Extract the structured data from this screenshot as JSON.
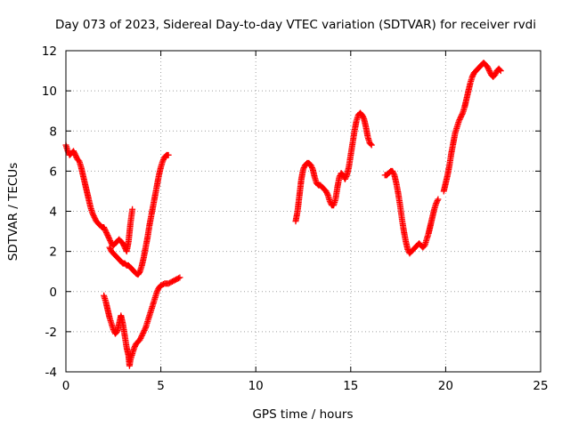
{
  "chart_data": {
    "type": "scatter",
    "title": "Day 073 of 2023, Sidereal Day-to-day VTEC variation (SDTVAR) for receiver rvdi",
    "xlabel": "GPS time / hours",
    "ylabel": "SDTVAR / TECUs",
    "xlim": [
      0,
      25
    ],
    "ylim": [
      -4,
      12
    ],
    "x_ticks": [
      0,
      5,
      10,
      15,
      20,
      25
    ],
    "y_ticks": [
      -4,
      -2,
      0,
      2,
      4,
      6,
      8,
      10,
      12
    ],
    "x_tick_labels": [
      "0",
      "5",
      "10",
      "15",
      "20",
      "25"
    ],
    "y_tick_labels": [
      "-4",
      "-2",
      "0",
      "2",
      "4",
      "6",
      "8",
      "10",
      "12"
    ],
    "grid": true,
    "legend": "none",
    "marker": "plus",
    "color": "#ff0000",
    "series": [
      {
        "points": [
          [
            0.0,
            7.3
          ],
          [
            0.1,
            7.0
          ],
          [
            0.2,
            6.8
          ],
          [
            0.3,
            6.9
          ],
          [
            0.4,
            7.0
          ],
          [
            0.5,
            6.8
          ],
          [
            0.6,
            6.6
          ],
          [
            0.7,
            6.5
          ],
          [
            0.8,
            6.2
          ],
          [
            0.9,
            5.8
          ],
          [
            1.0,
            5.4
          ],
          [
            1.1,
            5.0
          ],
          [
            1.2,
            4.6
          ],
          [
            1.3,
            4.2
          ],
          [
            1.4,
            3.9
          ],
          [
            1.5,
            3.7
          ],
          [
            1.6,
            3.5
          ],
          [
            1.7,
            3.4
          ],
          [
            1.8,
            3.3
          ],
          [
            1.9,
            3.2
          ],
          [
            2.0,
            3.2
          ],
          [
            2.1,
            3.0
          ],
          [
            2.2,
            2.8
          ],
          [
            2.3,
            2.6
          ],
          [
            2.4,
            2.4
          ],
          [
            2.5,
            2.3
          ],
          [
            2.6,
            2.4
          ],
          [
            2.7,
            2.5
          ],
          [
            2.8,
            2.6
          ],
          [
            2.9,
            2.5
          ],
          [
            3.0,
            2.4
          ],
          [
            3.1,
            2.2
          ],
          [
            3.2,
            2.0
          ],
          [
            3.3,
            2.5
          ],
          [
            3.4,
            3.4
          ],
          [
            3.5,
            4.1
          ]
        ]
      },
      {
        "points": [
          [
            2.3,
            2.2
          ],
          [
            2.4,
            2.0
          ],
          [
            2.5,
            1.9
          ],
          [
            2.6,
            1.8
          ],
          [
            2.7,
            1.7
          ],
          [
            2.8,
            1.6
          ],
          [
            2.9,
            1.5
          ],
          [
            3.0,
            1.4
          ],
          [
            3.1,
            1.4
          ],
          [
            3.2,
            1.3
          ],
          [
            3.3,
            1.3
          ],
          [
            3.4,
            1.2
          ],
          [
            3.5,
            1.1
          ],
          [
            3.6,
            1.0
          ],
          [
            3.7,
            0.9
          ],
          [
            3.8,
            0.85
          ],
          [
            3.9,
            1.0
          ],
          [
            4.0,
            1.3
          ],
          [
            4.1,
            1.7
          ],
          [
            4.2,
            2.2
          ],
          [
            4.3,
            2.7
          ],
          [
            4.4,
            3.3
          ],
          [
            4.5,
            3.8
          ],
          [
            4.6,
            4.3
          ],
          [
            4.7,
            4.8
          ],
          [
            4.8,
            5.3
          ],
          [
            4.9,
            5.8
          ],
          [
            5.0,
            6.2
          ],
          [
            5.1,
            6.5
          ],
          [
            5.2,
            6.7
          ],
          [
            5.3,
            6.8
          ],
          [
            5.4,
            6.8
          ]
        ]
      },
      {
        "points": [
          [
            2.0,
            -0.2
          ],
          [
            2.1,
            -0.5
          ],
          [
            2.2,
            -0.9
          ],
          [
            2.3,
            -1.3
          ],
          [
            2.4,
            -1.6
          ],
          [
            2.5,
            -1.9
          ],
          [
            2.6,
            -2.1
          ],
          [
            2.7,
            -2.0
          ],
          [
            2.8,
            -1.6
          ],
          [
            2.9,
            -1.2
          ],
          [
            3.0,
            -1.6
          ],
          [
            3.1,
            -2.2
          ],
          [
            3.2,
            -2.8
          ],
          [
            3.3,
            -3.2
          ],
          [
            3.35,
            -3.7
          ],
          [
            3.4,
            -3.4
          ],
          [
            3.5,
            -3.1
          ],
          [
            3.6,
            -2.8
          ],
          [
            3.7,
            -2.6
          ],
          [
            3.8,
            -2.5
          ],
          [
            3.9,
            -2.4
          ],
          [
            4.0,
            -2.2
          ],
          [
            4.1,
            -2.0
          ],
          [
            4.2,
            -1.8
          ],
          [
            4.3,
            -1.5
          ],
          [
            4.4,
            -1.2
          ],
          [
            4.5,
            -0.9
          ],
          [
            4.6,
            -0.6
          ],
          [
            4.7,
            -0.3
          ],
          [
            4.8,
            0.0
          ],
          [
            4.9,
            0.2
          ],
          [
            5.0,
            0.3
          ],
          [
            5.2,
            0.4
          ],
          [
            5.4,
            0.4
          ],
          [
            5.6,
            0.5
          ],
          [
            5.8,
            0.6
          ],
          [
            6.0,
            0.7
          ]
        ]
      },
      {
        "points": [
          [
            12.1,
            3.5
          ],
          [
            12.2,
            4.0
          ],
          [
            12.3,
            4.8
          ],
          [
            12.4,
            5.6
          ],
          [
            12.5,
            6.1
          ],
          [
            12.6,
            6.3
          ],
          [
            12.7,
            6.4
          ],
          [
            12.8,
            6.4
          ],
          [
            12.9,
            6.3
          ],
          [
            13.0,
            6.1
          ],
          [
            13.1,
            5.7
          ],
          [
            13.2,
            5.4
          ],
          [
            13.3,
            5.3
          ],
          [
            13.4,
            5.3
          ],
          [
            13.5,
            5.2
          ],
          [
            13.6,
            5.1
          ],
          [
            13.7,
            5.0
          ],
          [
            13.8,
            4.8
          ],
          [
            13.9,
            4.5
          ],
          [
            14.0,
            4.3
          ],
          [
            14.1,
            4.3
          ],
          [
            14.2,
            4.6
          ],
          [
            14.3,
            5.2
          ],
          [
            14.4,
            5.7
          ],
          [
            14.5,
            5.9
          ],
          [
            14.6,
            5.8
          ],
          [
            14.7,
            5.6
          ],
          [
            14.8,
            5.8
          ],
          [
            14.9,
            6.2
          ],
          [
            15.0,
            6.8
          ],
          [
            15.1,
            7.4
          ],
          [
            15.2,
            8.0
          ],
          [
            15.3,
            8.5
          ],
          [
            15.4,
            8.8
          ],
          [
            15.5,
            8.9
          ],
          [
            15.6,
            8.8
          ],
          [
            15.7,
            8.6
          ],
          [
            15.8,
            8.2
          ],
          [
            15.9,
            7.7
          ],
          [
            16.0,
            7.4
          ],
          [
            16.1,
            7.3
          ]
        ]
      },
      {
        "points": [
          [
            16.8,
            5.8
          ],
          [
            16.9,
            5.8
          ],
          [
            17.0,
            5.9
          ],
          [
            17.1,
            6.0
          ],
          [
            17.2,
            6.0
          ],
          [
            17.3,
            5.8
          ],
          [
            17.4,
            5.4
          ],
          [
            17.5,
            4.9
          ],
          [
            17.6,
            4.3
          ],
          [
            17.7,
            3.6
          ],
          [
            17.8,
            3.0
          ],
          [
            17.9,
            2.5
          ],
          [
            18.0,
            2.1
          ],
          [
            18.1,
            1.9
          ],
          [
            18.2,
            2.0
          ],
          [
            18.3,
            2.1
          ],
          [
            18.4,
            2.2
          ],
          [
            18.5,
            2.3
          ],
          [
            18.6,
            2.4
          ],
          [
            18.7,
            2.3
          ],
          [
            18.8,
            2.2
          ],
          [
            18.9,
            2.3
          ],
          [
            19.0,
            2.6
          ],
          [
            19.1,
            2.9
          ],
          [
            19.2,
            3.3
          ],
          [
            19.3,
            3.7
          ],
          [
            19.4,
            4.1
          ],
          [
            19.5,
            4.4
          ],
          [
            19.6,
            4.6
          ]
        ]
      },
      {
        "points": [
          [
            19.9,
            5.0
          ],
          [
            20.0,
            5.4
          ],
          [
            20.1,
            5.8
          ],
          [
            20.2,
            6.3
          ],
          [
            20.3,
            6.9
          ],
          [
            20.4,
            7.4
          ],
          [
            20.5,
            7.9
          ],
          [
            20.6,
            8.2
          ],
          [
            20.7,
            8.5
          ],
          [
            20.8,
            8.7
          ],
          [
            20.9,
            8.9
          ],
          [
            21.0,
            9.2
          ],
          [
            21.1,
            9.6
          ],
          [
            21.2,
            10.0
          ],
          [
            21.3,
            10.4
          ],
          [
            21.4,
            10.7
          ],
          [
            21.5,
            10.9
          ],
          [
            21.6,
            11.0
          ],
          [
            21.7,
            11.1
          ],
          [
            21.8,
            11.2
          ],
          [
            21.9,
            11.3
          ],
          [
            22.0,
            11.4
          ],
          [
            22.1,
            11.3
          ],
          [
            22.2,
            11.2
          ],
          [
            22.3,
            11.0
          ],
          [
            22.4,
            10.8
          ],
          [
            22.5,
            10.7
          ],
          [
            22.6,
            10.8
          ],
          [
            22.7,
            11.0
          ],
          [
            22.8,
            11.1
          ],
          [
            22.9,
            11.0
          ]
        ]
      }
    ]
  }
}
